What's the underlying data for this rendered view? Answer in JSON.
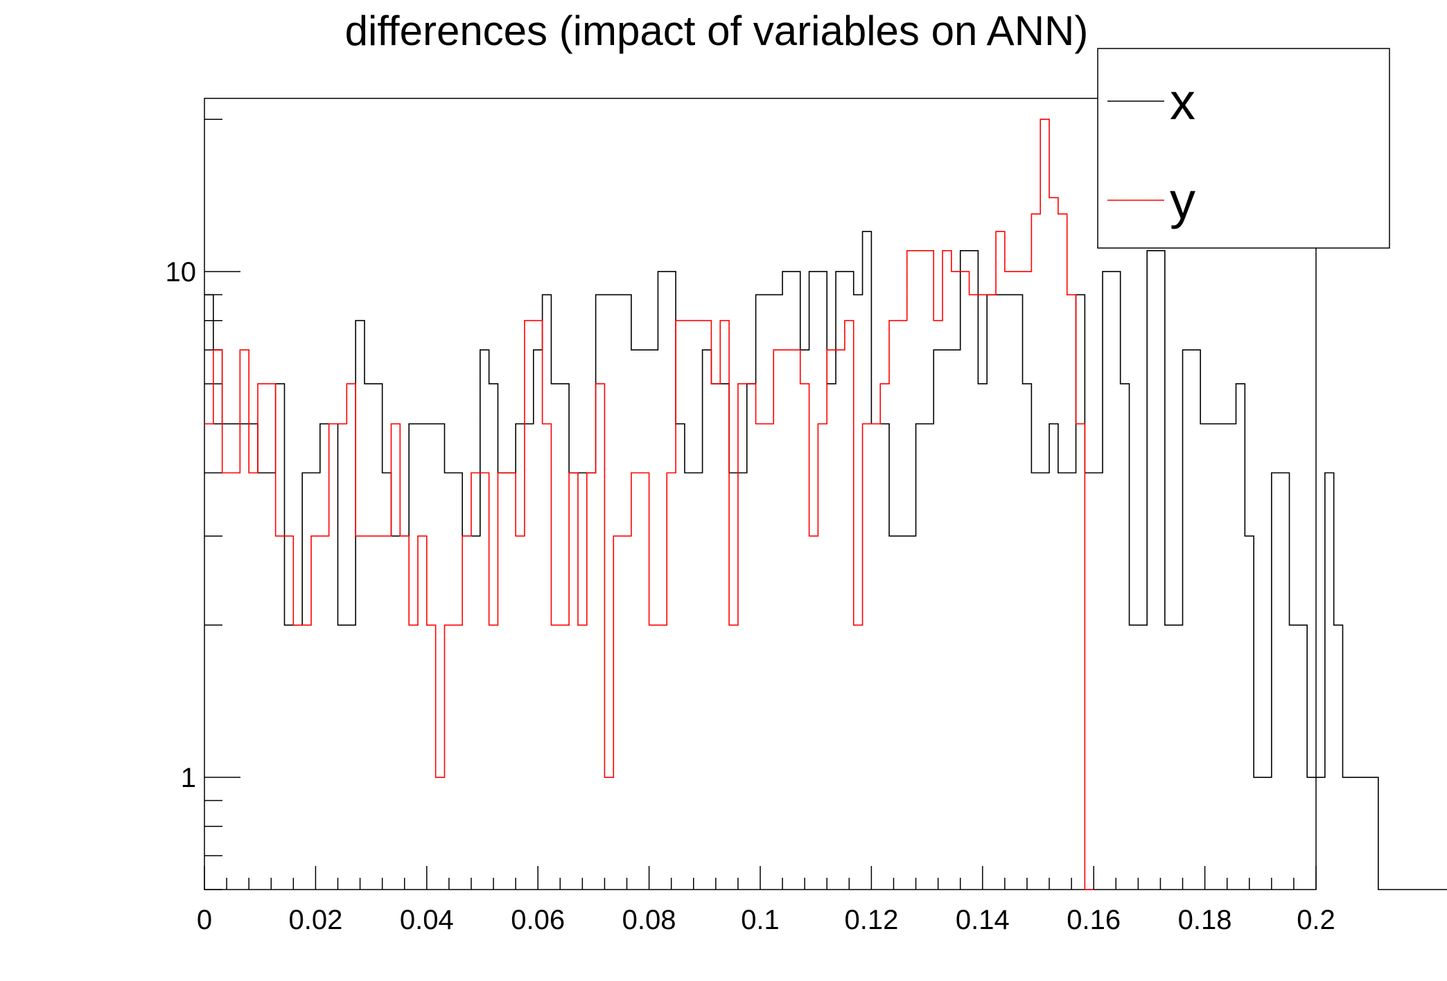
{
  "chart_data": {
    "type": "histogram",
    "title": "differences (impact of variables on ANN)",
    "xlabel": "",
    "ylabel": "",
    "xlim": [
      0,
      0.2
    ],
    "ylim": [
      0.6,
      22
    ],
    "y_scale": "log",
    "grid": false,
    "legend_position": "top-right",
    "x_tick_labels": [
      "0",
      "0.02",
      "0.04",
      "0.06",
      "0.08",
      "0.1",
      "0.12",
      "0.14",
      "0.16",
      "0.18",
      "0.2"
    ],
    "x_tick_values": [
      0,
      0.02,
      0.04,
      0.06,
      0.08,
      0.1,
      0.12,
      0.14,
      0.16,
      0.18,
      0.2
    ],
    "y_tick_labels": [
      "1",
      "10"
    ],
    "y_tick_values": [
      1,
      10
    ],
    "bin_width": 0.0016,
    "series": [
      {
        "name": "x",
        "color": "#000000",
        "x_start": 0,
        "values": [
          9,
          7,
          5,
          5,
          5,
          5,
          4,
          4,
          6,
          2,
          2,
          4,
          4,
          5,
          5,
          2,
          2,
          8,
          6,
          6,
          4,
          3,
          3,
          5,
          5,
          5,
          5,
          4,
          4,
          3,
          3,
          7,
          6,
          4,
          4,
          5,
          5,
          7,
          9,
          6,
          6,
          4,
          4,
          4,
          9,
          9,
          9,
          9,
          7,
          7,
          7,
          10,
          10,
          5,
          4,
          4,
          7,
          6,
          6,
          4,
          4,
          6,
          9,
          9,
          9,
          10,
          10,
          7,
          10,
          10,
          6,
          10,
          10,
          9,
          12,
          5,
          5,
          3,
          3,
          3,
          5,
          5,
          7,
          7,
          7,
          11,
          11,
          6,
          9,
          9,
          9,
          9,
          6,
          4,
          4,
          5,
          4,
          4,
          9,
          4,
          4,
          10,
          10,
          6,
          2,
          2,
          11,
          11,
          2,
          2,
          7,
          7,
          5,
          5,
          5,
          5,
          6,
          3,
          1,
          1,
          4,
          4,
          2,
          2,
          1,
          1,
          4,
          2,
          1,
          1,
          1,
          1,
          0,
          0,
          0,
          0,
          0,
          0,
          0,
          0
        ]
      },
      {
        "name": "y",
        "color": "#ff0000",
        "x_start": 0,
        "values": [
          5,
          7,
          4,
          4,
          7,
          4,
          6,
          6,
          3,
          3,
          2,
          2,
          3,
          3,
          5,
          5,
          6,
          3,
          3,
          3,
          3,
          5,
          3,
          2,
          3,
          2,
          1,
          2,
          2,
          3,
          4,
          4,
          2,
          4,
          4,
          3,
          8,
          8,
          5,
          2,
          2,
          4,
          2,
          4,
          6,
          1,
          3,
          3,
          4,
          4,
          2,
          2,
          4,
          8,
          8,
          8,
          8,
          6,
          8,
          2,
          6,
          6,
          5,
          5,
          7,
          7,
          7,
          6,
          3,
          5,
          7,
          7,
          8,
          2,
          5,
          5,
          6,
          8,
          8,
          11,
          11,
          11,
          8,
          11,
          10,
          10,
          9,
          9,
          9,
          12,
          10,
          10,
          10,
          13,
          20,
          14,
          13,
          9,
          5,
          0
        ]
      }
    ]
  }
}
